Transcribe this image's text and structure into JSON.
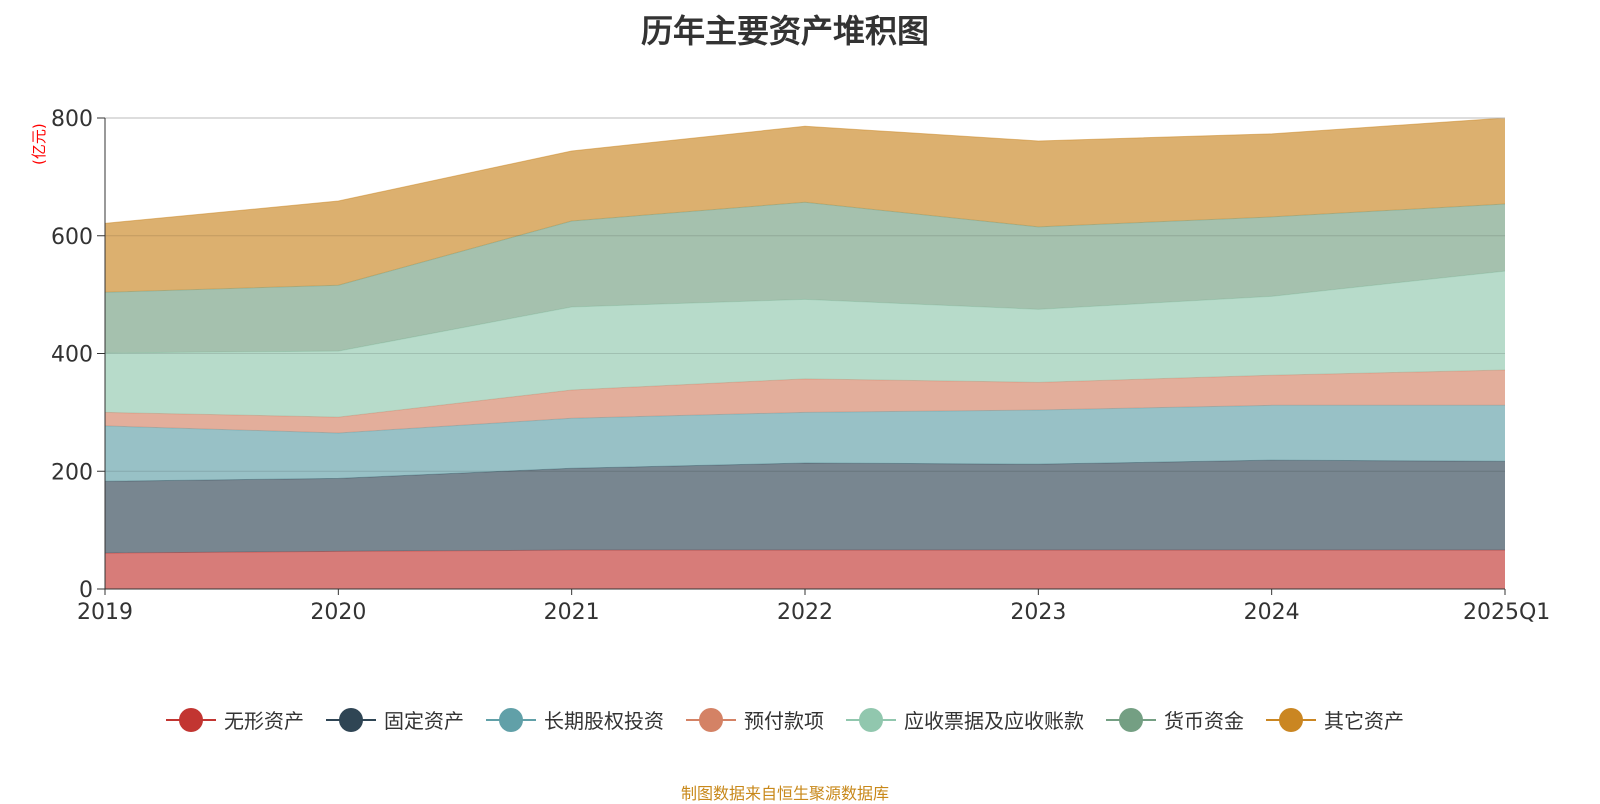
{
  "chart_data": {
    "type": "area",
    "stacked": true,
    "title": "历年主要资产堆积图",
    "ylabel": "(亿元)",
    "ylim": [
      0,
      800
    ],
    "yticks": [
      "0",
      "200",
      "400",
      "600",
      "800"
    ],
    "categories": [
      "2019",
      "2020",
      "2021",
      "2022",
      "2023",
      "2024",
      "2025Q1"
    ],
    "series": [
      {
        "name": "无形资产",
        "color": "#c23531",
        "values": [
          61,
          64,
          66,
          66,
          66,
          66,
          66
        ]
      },
      {
        "name": "固定资产",
        "color": "#2f4554",
        "values": [
          122,
          124,
          139,
          148,
          146,
          153,
          151
        ]
      },
      {
        "name": "长期股权投资",
        "color": "#61a0a8",
        "values": [
          94,
          77,
          85,
          86,
          92,
          93,
          95
        ]
      },
      {
        "name": "预付款项",
        "color": "#d48265",
        "values": [
          23,
          27,
          48,
          57,
          47,
          51,
          60
        ]
      },
      {
        "name": "应收票据及应收账款",
        "color": "#91c7ae",
        "values": [
          101,
          112,
          141,
          135,
          124,
          134,
          168
        ]
      },
      {
        "name": "货币资金",
        "color": "#749f83",
        "values": [
          103,
          112,
          146,
          165,
          140,
          135,
          114
        ]
      },
      {
        "name": "其它资产",
        "color": "#ca8622",
        "values": [
          117,
          143,
          119,
          129,
          146,
          141,
          146
        ]
      }
    ],
    "legend_position": "bottom",
    "source": "制图数据来自恒生聚源数据库"
  }
}
